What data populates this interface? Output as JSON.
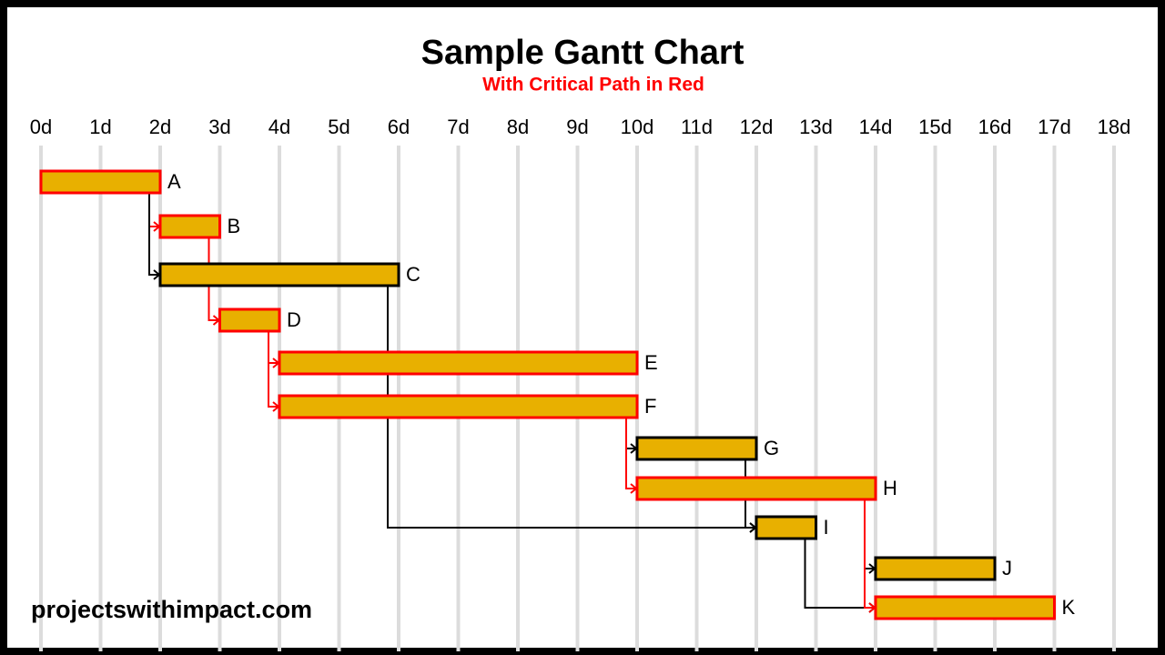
{
  "chart_data": {
    "type": "gantt",
    "title": "Sample Gantt Chart",
    "subtitle": "With Critical Path in Red",
    "footer": "projectswithimpact.com",
    "xlim": [
      0,
      18
    ],
    "xticks": [
      {
        "value": 0,
        "label": "0d"
      },
      {
        "value": 1,
        "label": "1d"
      },
      {
        "value": 2,
        "label": "2d"
      },
      {
        "value": 3,
        "label": "3d"
      },
      {
        "value": 4,
        "label": "4d"
      },
      {
        "value": 5,
        "label": "5d"
      },
      {
        "value": 6,
        "label": "6d"
      },
      {
        "value": 7,
        "label": "7d"
      },
      {
        "value": 8,
        "label": "8d"
      },
      {
        "value": 9,
        "label": "9d"
      },
      {
        "value": 10,
        "label": "10d"
      },
      {
        "value": 11,
        "label": "11d"
      },
      {
        "value": 12,
        "label": "12d"
      },
      {
        "value": 13,
        "label": "13d"
      },
      {
        "value": 14,
        "label": "14d"
      },
      {
        "value": 15,
        "label": "15d"
      },
      {
        "value": 16,
        "label": "16d"
      },
      {
        "value": 17,
        "label": "17d"
      },
      {
        "value": 18,
        "label": "18d"
      }
    ],
    "grid": true,
    "bar_color": "#e8b000",
    "critical_color": "#ff0000",
    "normal_color": "#000000",
    "tasks": [
      {
        "name": "A",
        "start": 0,
        "end": 2,
        "critical": true
      },
      {
        "name": "B",
        "start": 2,
        "end": 3,
        "critical": true
      },
      {
        "name": "C",
        "start": 2,
        "end": 6,
        "critical": false
      },
      {
        "name": "D",
        "start": 3,
        "end": 4,
        "critical": true
      },
      {
        "name": "E",
        "start": 4,
        "end": 10,
        "critical": true
      },
      {
        "name": "F",
        "start": 4,
        "end": 10,
        "critical": true
      },
      {
        "name": "G",
        "start": 10,
        "end": 12,
        "critical": false
      },
      {
        "name": "H",
        "start": 10,
        "end": 14,
        "critical": true
      },
      {
        "name": "I",
        "start": 12,
        "end": 13,
        "critical": false
      },
      {
        "name": "J",
        "start": 14,
        "end": 16,
        "critical": false
      },
      {
        "name": "K",
        "start": 14,
        "end": 17,
        "critical": true
      }
    ],
    "links": [
      {
        "from": 0,
        "to": 1,
        "critical": true
      },
      {
        "from": 0,
        "to": 2,
        "critical": false
      },
      {
        "from": 1,
        "to": 3,
        "critical": true
      },
      {
        "from": 3,
        "to": 4,
        "critical": true
      },
      {
        "from": 3,
        "to": 5,
        "critical": true
      },
      {
        "from": 5,
        "to": 6,
        "critical": false
      },
      {
        "from": 5,
        "to": 7,
        "critical": true
      },
      {
        "from": 2,
        "to": 8,
        "critical": false
      },
      {
        "from": 6,
        "to": 8,
        "critical": false
      },
      {
        "from": 8,
        "to": 10,
        "critical": false
      },
      {
        "from": 7,
        "to": 9,
        "critical": false
      },
      {
        "from": 7,
        "to": 10,
        "critical": true
      }
    ]
  }
}
